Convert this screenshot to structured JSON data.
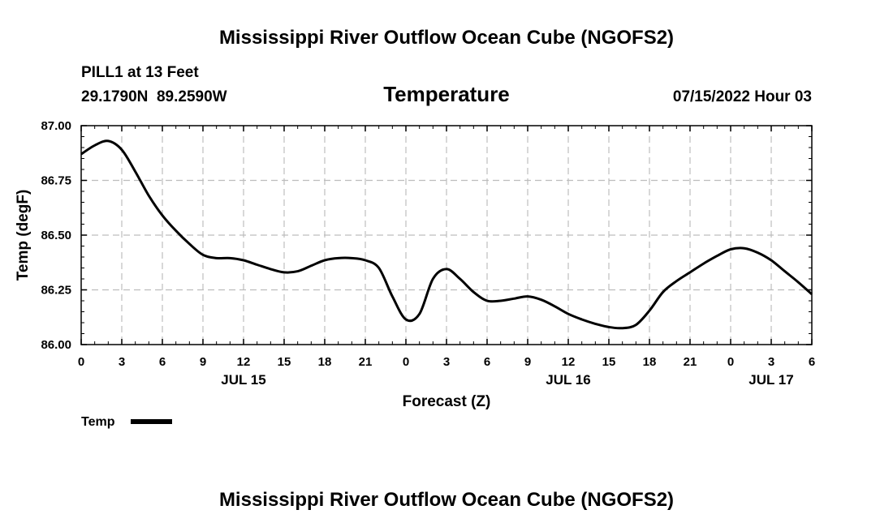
{
  "page": {
    "main_title": "Mississippi River Outflow Ocean Cube (NGOFS2)",
    "footer_title": "Mississippi River Outflow Ocean Cube (NGOFS2)"
  },
  "header": {
    "station": "PILL1 at 13 Feet",
    "coords": "29.1790N  89.2590W",
    "variable": "Temperature",
    "datetime": "07/15/2022 Hour 03"
  },
  "colors": {
    "line": "#000000",
    "grid": "#bdbdbd"
  },
  "chart_data": {
    "type": "line",
    "title": "Temperature",
    "xlabel": "Forecast (Z)",
    "ylabel": "Temp (degF)",
    "xlim": [
      0,
      54
    ],
    "ylim": [
      86.0,
      87.0
    ],
    "y_ticks": [
      86.0,
      86.25,
      86.5,
      86.75,
      87.0
    ],
    "y_tick_labels": [
      "86.00",
      "86.25",
      "86.50",
      "86.75",
      "87.00"
    ],
    "x_ticks": [
      0,
      3,
      6,
      9,
      12,
      15,
      18,
      21,
      24,
      27,
      30,
      33,
      36,
      39,
      42,
      45,
      48,
      51,
      54
    ],
    "x_tick_labels": [
      "0",
      "3",
      "6",
      "9",
      "12",
      "15",
      "18",
      "21",
      "0",
      "3",
      "6",
      "9",
      "12",
      "15",
      "18",
      "21",
      "0",
      "3",
      "6"
    ],
    "date_labels": [
      {
        "label": "JUL 15",
        "at": 12
      },
      {
        "label": "JUL 16",
        "at": 36
      },
      {
        "label": "JUL 17",
        "at": 51
      }
    ],
    "grid": true,
    "legend": {
      "position": "bottom-left",
      "entries": [
        "Temp"
      ]
    },
    "series": [
      {
        "name": "Temp",
        "x": [
          0,
          1,
          2,
          3,
          4,
          5,
          6,
          7,
          8,
          9,
          10,
          11,
          12,
          13,
          14,
          15,
          16,
          17,
          18,
          19,
          20,
          21,
          22,
          23,
          24,
          25,
          26,
          27,
          28,
          29,
          30,
          31,
          32,
          33,
          34,
          35,
          36,
          37,
          38,
          39,
          40,
          41,
          42,
          43,
          44,
          45,
          46,
          47,
          48,
          49,
          50,
          51,
          52,
          53,
          54
        ],
        "values": [
          86.87,
          86.91,
          86.93,
          86.89,
          86.79,
          86.68,
          86.59,
          86.52,
          86.46,
          86.41,
          86.395,
          86.395,
          86.385,
          86.365,
          86.345,
          86.33,
          86.335,
          86.36,
          86.385,
          86.395,
          86.395,
          86.385,
          86.35,
          86.22,
          86.115,
          86.14,
          86.3,
          86.345,
          86.3,
          86.24,
          86.2,
          86.2,
          86.21,
          86.22,
          86.205,
          86.175,
          86.14,
          86.115,
          86.095,
          86.08,
          86.075,
          86.09,
          86.155,
          86.24,
          86.29,
          86.33,
          86.37,
          86.405,
          86.435,
          86.44,
          86.42,
          86.385,
          86.335,
          86.285,
          86.23
        ]
      }
    ]
  }
}
